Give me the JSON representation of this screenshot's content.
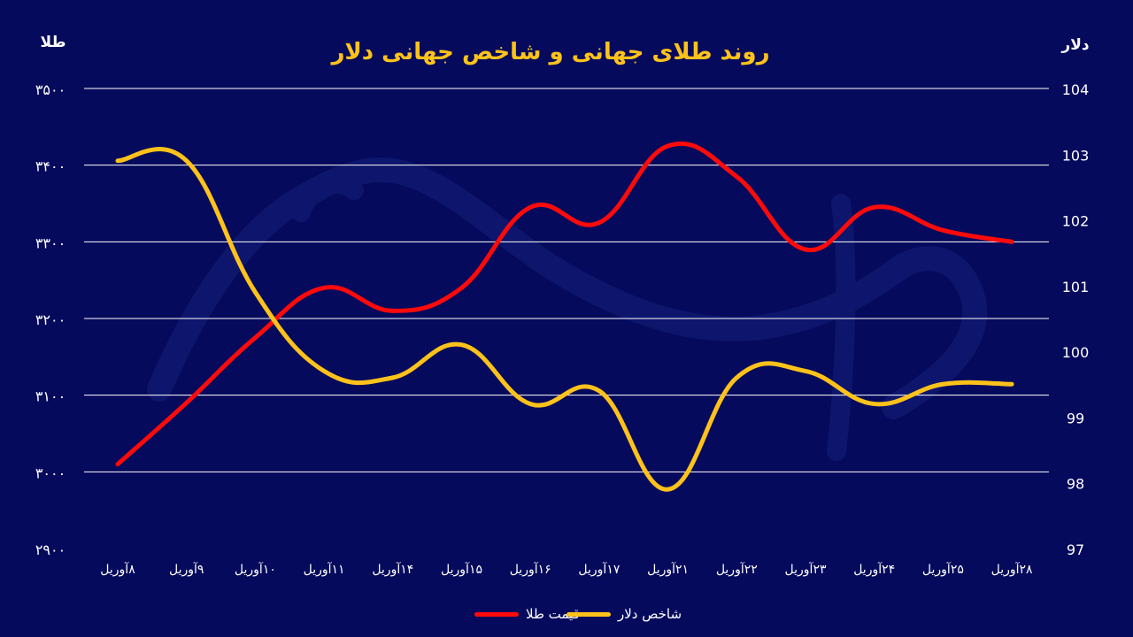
{
  "chart_data": {
    "type": "line",
    "title": "روند طلای جهانی و شاخص جهانی دلار",
    "left_axis_title": "طلا",
    "right_axis_title": "دلار",
    "categories": [
      "۸آوریل",
      "۹آوریل",
      "۱۰آوریل",
      "۱۱آوریل",
      "۱۴آوریل",
      "۱۵آوریل",
      "۱۶آوریل",
      "۱۷آوریل",
      "۲۱آوریل",
      "۲۲آوریل",
      "۲۳آوریل",
      "۲۴آوریل",
      "۲۵آوریل",
      "۲۸آوریل"
    ],
    "left_ticks": [
      "۲۹۰۰",
      "۳۰۰۰",
      "۳۱۰۰",
      "۳۲۰۰",
      "۳۳۰۰",
      "۳۴۰۰",
      "۳۵۰۰"
    ],
    "right_ticks": [
      "97",
      "98",
      "99",
      "100",
      "101",
      "102",
      "103",
      "104"
    ],
    "left_ylim": [
      2900,
      3500
    ],
    "right_ylim": [
      97,
      104
    ],
    "grid": true,
    "series": [
      {
        "name": "قیمت طلا",
        "axis": "left",
        "color": "#ff0a0a",
        "values": [
          3010,
          3090,
          3175,
          3240,
          3210,
          3240,
          3345,
          3325,
          3425,
          3385,
          3290,
          3345,
          3315,
          3300
        ]
      },
      {
        "name": "شاخص دلار",
        "axis": "right",
        "color": "#ffc21a",
        "values": [
          102.9,
          102.9,
          100.9,
          99.7,
          99.6,
          100.1,
          99.2,
          99.4,
          97.9,
          99.6,
          99.7,
          99.2,
          99.5,
          99.5
        ]
      }
    ]
  }
}
